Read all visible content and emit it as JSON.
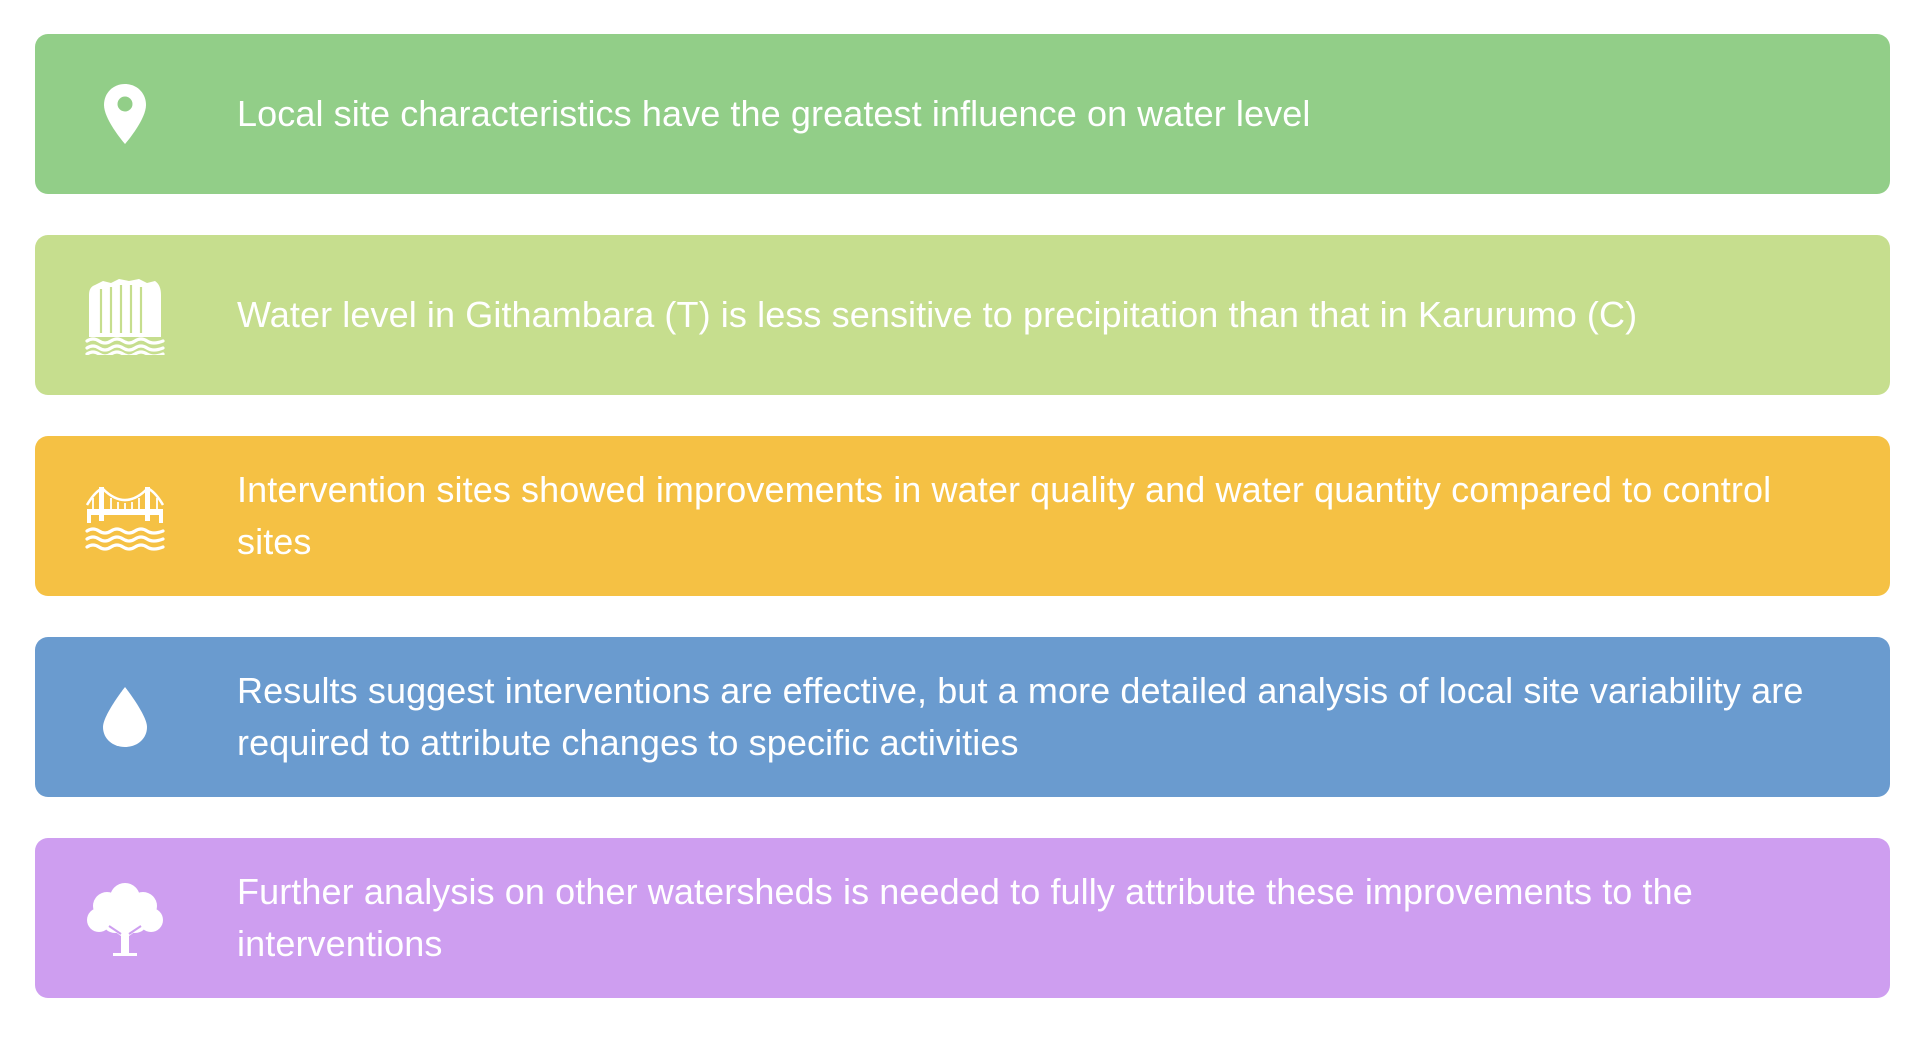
{
  "cards": [
    {
      "icon": "map-pin-icon",
      "color": "#92CE88",
      "text": "Local site characteristics have the greatest influence on water level"
    },
    {
      "icon": "waterfall-icon",
      "color": "#C6DE8E",
      "text": "Water level in Githambara (T) is less sensitive to precipitation than that in Karurumo (C)"
    },
    {
      "icon": "bridge-icon",
      "color": "#F5C144",
      "text": "Intervention sites showed improvements in water quality and water quantity compared to control sites"
    },
    {
      "icon": "water-drop-icon",
      "color": "#6A9BCF",
      "text": "Results suggest interventions are effective, but a more detailed analysis of local site variability are required to attribute changes to specific activities"
    },
    {
      "icon": "tree-icon",
      "color": "#CE9EF0",
      "text": "Further analysis on other watersheds is needed to fully attribute these improvements to the interventions"
    }
  ]
}
